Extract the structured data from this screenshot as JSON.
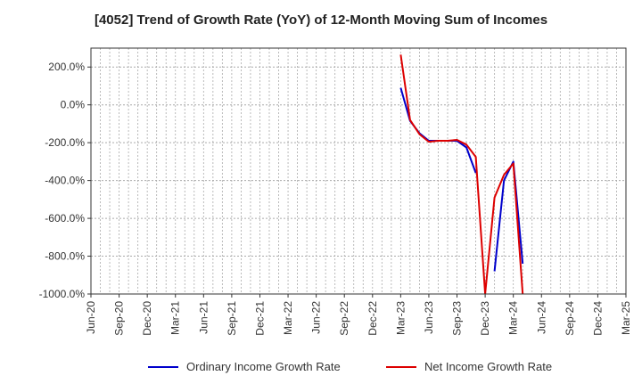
{
  "chart_data": {
    "type": "line",
    "title": "[4052]  Trend of Growth Rate (YoY) of 12-Month Moving Sum of Incomes",
    "xlabel": "",
    "ylabel": "",
    "ylim": [
      -1000,
      300
    ],
    "y_ticks": [
      "200.0%",
      "0.0%",
      "-200.0%",
      "-400.0%",
      "-600.0%",
      "-800.0%",
      "-1000.0%"
    ],
    "y_tick_values": [
      200,
      0,
      -200,
      -400,
      -600,
      -800,
      -1000
    ],
    "x_ticks": [
      "Jun-20",
      "Sep-20",
      "Dec-20",
      "Mar-21",
      "Jun-21",
      "Sep-21",
      "Dec-21",
      "Mar-22",
      "Jun-22",
      "Sep-22",
      "Dec-22",
      "Mar-23",
      "Jun-23",
      "Sep-23",
      "Dec-23",
      "Mar-24",
      "Jun-24",
      "Sep-24",
      "Dec-24",
      "Mar-25"
    ],
    "grid": true,
    "legend_position": "bottom",
    "colors": {
      "ordinary": "#0000cc",
      "net": "#dd0000",
      "grid": "#aaaaaa",
      "axis": "#333333"
    },
    "series": [
      {
        "name": "Ordinary Income Growth Rate",
        "color": "#0000cc",
        "points": [
          [
            "Mar-23",
            90
          ],
          [
            "Apr-23",
            -85
          ],
          [
            "May-23",
            -150
          ],
          [
            "Jun-23",
            -190
          ],
          [
            "Jul-23",
            -190
          ],
          [
            "Aug-23",
            -190
          ],
          [
            "Sep-23",
            -190
          ],
          [
            "Oct-23",
            -225
          ],
          [
            "Nov-23",
            -360
          ],
          [
            "Dec-23",
            null
          ],
          [
            "Jan-24",
            -880
          ],
          [
            "Feb-24",
            -400
          ],
          [
            "Mar-24",
            -300
          ],
          [
            "Apr-24",
            -840
          ]
        ]
      },
      {
        "name": "Net Income Growth Rate",
        "color": "#dd0000",
        "points": [
          [
            "Mar-23",
            265
          ],
          [
            "Apr-23",
            -80
          ],
          [
            "May-23",
            -155
          ],
          [
            "Jun-23",
            -195
          ],
          [
            "Jul-23",
            -190
          ],
          [
            "Aug-23",
            -190
          ],
          [
            "Sep-23",
            -185
          ],
          [
            "Oct-23",
            -210
          ],
          [
            "Nov-23",
            -275
          ],
          [
            "Dec-23",
            -1000
          ],
          [
            "Jan-24",
            -490
          ],
          [
            "Feb-24",
            -370
          ],
          [
            "Mar-24",
            -310
          ],
          [
            "Apr-24",
            -1000
          ]
        ]
      }
    ]
  }
}
